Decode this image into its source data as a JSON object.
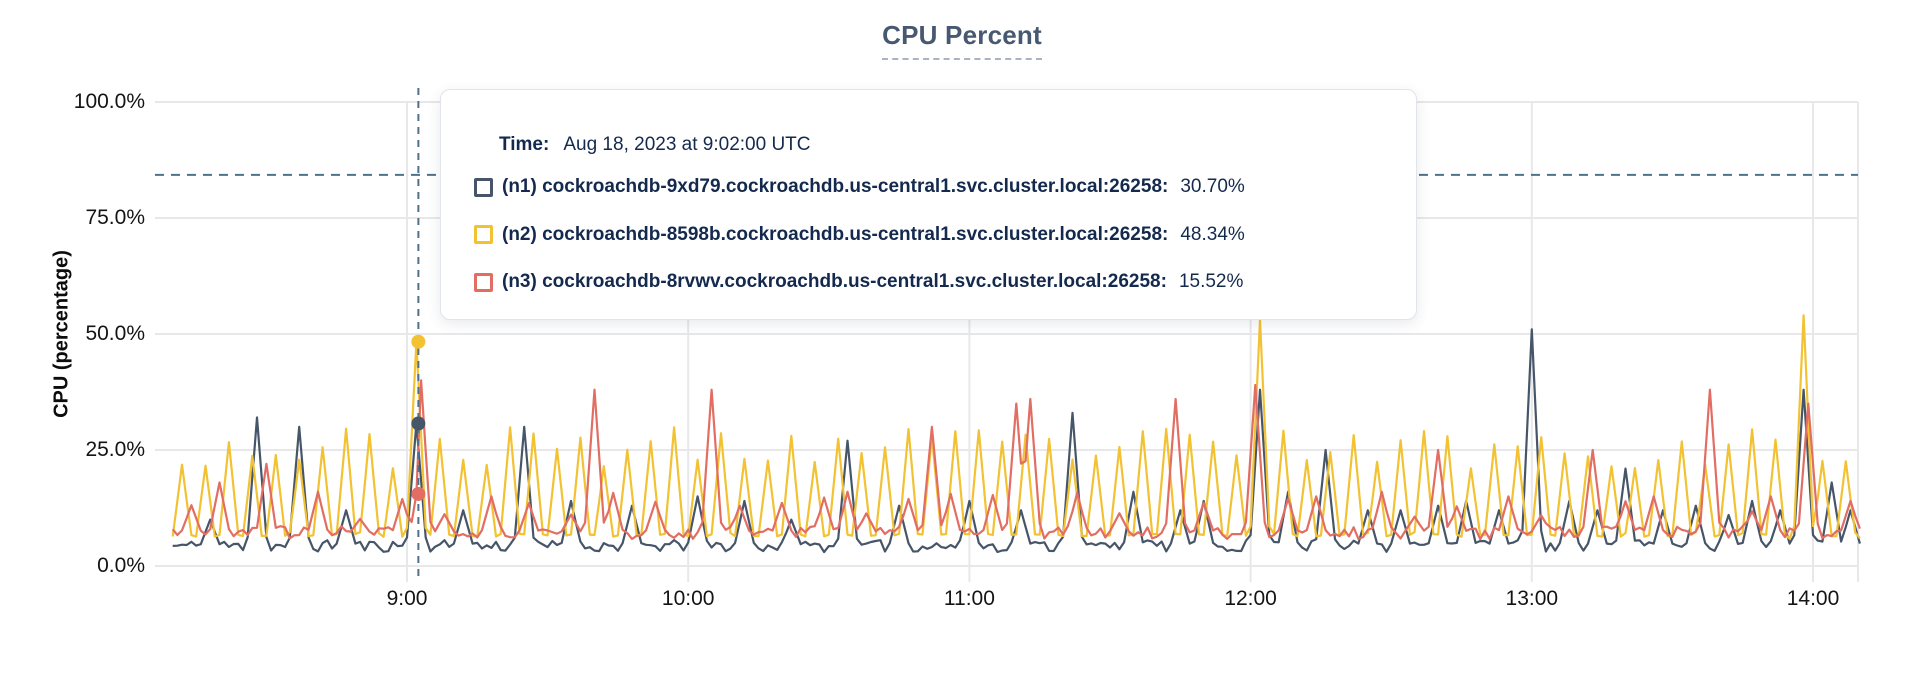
{
  "title": "CPU Percent",
  "y_axis_label": "CPU (percentage)",
  "colors": {
    "n1": "#475569",
    "n2": "#f2c233",
    "n3": "#e26d62",
    "grid": "#e8e8eb",
    "dashed_guides": "#50718a",
    "tooltip_text": "#14294e",
    "title_text": "#475872"
  },
  "tooltip": {
    "time_label": "Time:",
    "time_value": "Aug 18, 2023 at 9:02:00 UTC",
    "rows": [
      {
        "id": "n1",
        "name": "(n1) cockroachdb-9xd79.cockroachdb.us-central1.svc.cluster.local:26258:",
        "value": "30.70%",
        "color": "#475569"
      },
      {
        "id": "n2",
        "name": "(n2) cockroachdb-8598b.cockroachdb.us-central1.svc.cluster.local:26258:",
        "value": "48.34%",
        "color": "#f2c233"
      },
      {
        "id": "n3",
        "name": "(n3) cockroachdb-8rvwv.cockroachdb.us-central1.svc.cluster.local:26258:",
        "value": "15.52%",
        "color": "#e26d62"
      }
    ]
  },
  "chart_data": {
    "type": "line",
    "title": "CPU Percent",
    "ylabel": "CPU (percentage)",
    "ylim": [
      0,
      100
    ],
    "grid": true,
    "y_ticks": [
      {
        "label": "100.0%",
        "value": 100
      },
      {
        "label": "75.0%",
        "value": 75
      },
      {
        "label": "50.0%",
        "value": 50
      },
      {
        "label": "25.0%",
        "value": 25
      },
      {
        "label": "0.0%",
        "value": 0
      }
    ],
    "x_ticks": [
      {
        "label": "9:00",
        "minute": 540
      },
      {
        "label": "10:00",
        "minute": 600
      },
      {
        "label": "11:00",
        "minute": 660
      },
      {
        "label": "12:00",
        "minute": 720
      },
      {
        "label": "13:00",
        "minute": 780
      },
      {
        "label": "14:00",
        "minute": 840
      }
    ],
    "time_domain_minutes": [
      490,
      850
    ],
    "threshold_line_percent": 84.3,
    "hover": {
      "minute": 542,
      "time": "Aug 18, 2023 at 9:02:00 UTC",
      "values": {
        "n1": 30.7,
        "n2": 48.34,
        "n3": 15.52
      }
    },
    "series": [
      {
        "id": "n1",
        "name": "(n1) cockroachdb-9xd79.cockroachdb.us-central1.svc.cluster.local:26258",
        "color": "#475569",
        "baseline": 4.3,
        "noise": 1.3,
        "seed": 11,
        "value_at_hover": 30.7,
        "spikes": [
          [
            498,
            10
          ],
          [
            508,
            32
          ],
          [
            517,
            30
          ],
          [
            527,
            12
          ],
          [
            542,
            30.7
          ],
          [
            552,
            12
          ],
          [
            565,
            30
          ],
          [
            575,
            14
          ],
          [
            588,
            13
          ],
          [
            602,
            15
          ],
          [
            612,
            14
          ],
          [
            622,
            10
          ],
          [
            634,
            27
          ],
          [
            645,
            13
          ],
          [
            660,
            14
          ],
          [
            671,
            12
          ],
          [
            682,
            33
          ],
          [
            695,
            16
          ],
          [
            705,
            12
          ],
          [
            710,
            14
          ],
          [
            722,
            38
          ],
          [
            728,
            16
          ],
          [
            736,
            25
          ],
          [
            745,
            12
          ],
          [
            752,
            12
          ],
          [
            760,
            13
          ],
          [
            766,
            14
          ],
          [
            773,
            12
          ],
          [
            780,
            51
          ],
          [
            788,
            14
          ],
          [
            794,
            12
          ],
          [
            800,
            21
          ],
          [
            808,
            12
          ],
          [
            815,
            13
          ],
          [
            822,
            11
          ],
          [
            827,
            14
          ],
          [
            833,
            12
          ],
          [
            838,
            38
          ],
          [
            844,
            18
          ],
          [
            848,
            12
          ]
        ]
      },
      {
        "id": "n2",
        "name": "(n2) cockroachdb-8598b.cockroachdb.us-central1.svc.cluster.local:26258",
        "color": "#f2c233",
        "baseline": 5.2,
        "noise": 2.2,
        "seed": 23,
        "value_at_hover": 48.34,
        "periodic": {
          "start": 492,
          "end": 849,
          "period": 5,
          "min": 21,
          "max": 30
        },
        "spikes": [
          [
            542,
            48.34
          ],
          [
            722,
            53
          ],
          [
            838,
            54
          ]
        ]
      },
      {
        "id": "n3",
        "name": "(n3) cockroachdb-8rvwv.cockroachdb.us-central1.svc.cluster.local:26258",
        "color": "#e26d62",
        "baseline": 7.2,
        "noise": 1.4,
        "seed": 37,
        "value_at_hover": 15.52,
        "periodic": {
          "start": 494,
          "end": 849,
          "period": 9,
          "min": 10,
          "max": 16
        },
        "spikes": [
          [
            500,
            18
          ],
          [
            510,
            22
          ],
          [
            543,
            40
          ],
          [
            558,
            15
          ],
          [
            580,
            38
          ],
          [
            605,
            38
          ],
          [
            634,
            16
          ],
          [
            652,
            30
          ],
          [
            670,
            35
          ],
          [
            673,
            36
          ],
          [
            704,
            36
          ],
          [
            721,
            39
          ],
          [
            734,
            15
          ],
          [
            748,
            16
          ],
          [
            760,
            25
          ],
          [
            775,
            15
          ],
          [
            793,
            25
          ],
          [
            806,
            15
          ],
          [
            818,
            38
          ],
          [
            831,
            15
          ],
          [
            839,
            35
          ],
          [
            848,
            14
          ]
        ]
      }
    ]
  }
}
